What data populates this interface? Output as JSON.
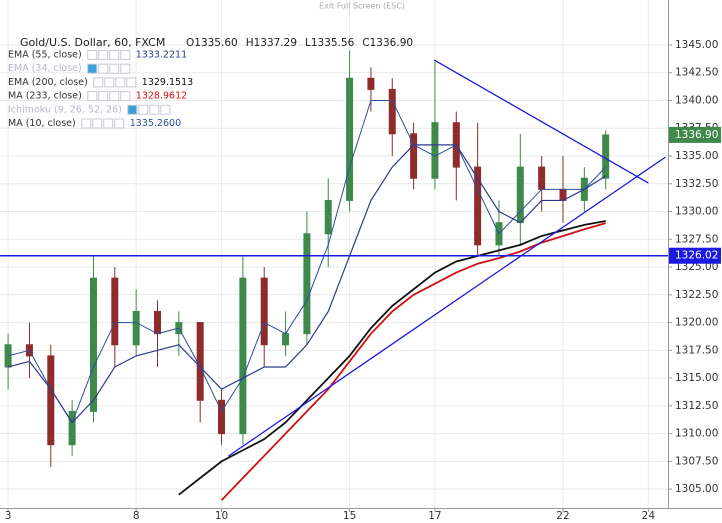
{
  "top_bar": "Exit Full Screen (ESC)",
  "chart_data": {
    "type": "candlestick",
    "title": "Gold/U.S. Dollar, 60, FXCM",
    "ohlc_labels": [
      "O1335.60",
      "H1337.29",
      "L1335.56",
      "C1336.90"
    ],
    "indicators": [
      {
        "name": "EMA (55, close)",
        "value_label": "1333.2211",
        "color": "#2b3a8f",
        "faded": false
      },
      {
        "name": "EMA (34, close)",
        "value_label": null,
        "color": "#9aa3c8",
        "faded": true
      },
      {
        "name": "EMA (200, close)",
        "value_label": "1329.1513",
        "color": "#111111",
        "faded": false
      },
      {
        "name": "MA (233, close)",
        "value_label": "1328.9612",
        "color": "#d01010",
        "faded": false
      },
      {
        "name": "Ichimoku (9, 26, 52, 26)",
        "value_label": null,
        "color": "#9aa3c8",
        "faded": true
      },
      {
        "name": "MA (10, close)",
        "value_label": "1335.2600",
        "color": "#2b4f9c",
        "faded": false
      }
    ],
    "x": [
      0,
      0.5,
      1,
      1.5,
      2,
      2.5,
      3,
      3.5,
      4,
      4.5,
      5,
      5.5,
      6,
      6.5,
      7,
      7.5,
      8,
      8.5,
      9,
      9.5,
      10,
      10.5,
      11,
      11.5,
      12,
      12.5,
      13,
      13.5,
      14
    ],
    "open": [
      1316,
      1318,
      1317,
      1309,
      1312,
      1324,
      1318,
      1321,
      1319,
      1320,
      1313,
      1310,
      1324,
      1318,
      1319,
      1328,
      1331,
      1342,
      1341,
      1337,
      1333,
      1338,
      1334,
      1327,
      1329,
      1334,
      1332,
      1331,
      1333
    ],
    "high": [
      1319,
      1320,
      1318,
      1313,
      1326,
      1325,
      1323,
      1322,
      1321,
      1320,
      1314,
      1326,
      1325,
      1321,
      1330,
      1333,
      1344.5,
      1343,
      1342,
      1338,
      1343.5,
      1339,
      1338,
      1331,
      1337,
      1335,
      1335,
      1334,
      1337.3
    ],
    "low": [
      1314,
      1315,
      1307,
      1308,
      1311,
      1316,
      1317,
      1316,
      1317,
      1311,
      1309,
      1309,
      1316,
      1317,
      1318,
      1325,
      1330,
      1339,
      1335,
      1332,
      1332,
      1331,
      1326,
      1326,
      1327,
      1330,
      1329,
      1330,
      1332
    ],
    "close": [
      1318,
      1317,
      1309,
      1312,
      1324,
      1318,
      1321,
      1319,
      1320,
      1313,
      1310,
      1324,
      1318,
      1319,
      1328,
      1331,
      1342,
      1341,
      1337,
      1333,
      1338,
      1334,
      1327,
      1329,
      1334,
      1332,
      1331,
      1333,
      1336.9
    ],
    "up_color": "#3f8a4a",
    "down_color": "#8e2c2c",
    "lines": [
      {
        "indicator": 5,
        "width": 1,
        "values": [
          1317,
          1317.5,
          1314,
          1311,
          1316,
          1320,
          1320,
          1319,
          1319.5,
          1316,
          1312,
          1315,
          1320,
          1319,
          1322,
          1327,
          1334,
          1340,
          1340,
          1336,
          1335,
          1336,
          1332,
          1328,
          1330,
          1332,
          1332,
          1332,
          1334
        ]
      },
      {
        "indicator": 0,
        "width": 1.2,
        "values": [
          1316,
          1316.5,
          1314,
          1311,
          1313,
          1316,
          1317,
          1317.5,
          1318,
          1316,
          1314,
          1315,
          1316,
          1316,
          1318,
          1321,
          1326,
          1331,
          1334,
          1336,
          1336,
          1336,
          1333,
          1330,
          1329,
          1331,
          1331,
          1332,
          1333.2
        ]
      },
      {
        "indicator": 2,
        "width": 1.8,
        "values": [
          null,
          null,
          null,
          null,
          null,
          null,
          null,
          null,
          1304.5,
          1306,
          1307.5,
          1308.5,
          1309.5,
          1311,
          1313,
          1315,
          1317,
          1319.5,
          1321.5,
          1323,
          1324.5,
          1325.5,
          1326,
          1326.5,
          1327,
          1327.8,
          1328.3,
          1328.8,
          1329.15
        ]
      },
      {
        "indicator": 3,
        "width": 1.8,
        "values": [
          null,
          null,
          null,
          null,
          null,
          null,
          null,
          null,
          null,
          null,
          1304,
          1306,
          1308,
          1310,
          1312,
          1314,
          1316.5,
          1319,
          1321,
          1322.5,
          1323.5,
          1324.5,
          1325.3,
          1325.8,
          1326.4,
          1327.2,
          1327.8,
          1328.4,
          1328.96
        ]
      }
    ],
    "trendlines": [
      {
        "x": [
          5.16,
          15.4
        ],
        "y": [
          1307.97,
          1334.9
        ],
        "color": "#1a1ae0"
      },
      {
        "x": [
          9.98,
          15.0
        ],
        "y": [
          1343.65,
          1332.57
        ],
        "color": "#1a1ae0"
      }
    ],
    "hline": {
      "value": 1326.02,
      "label": "1326.02",
      "color": "#1a1ae0"
    },
    "last_price": {
      "value": 1336.9,
      "label": "1336.90",
      "color": "#3f8a4a"
    },
    "xlim": [
      -0.19,
      15.46
    ],
    "xticks": [
      {
        "value": 0,
        "label": "3"
      },
      {
        "value": 3,
        "label": "8"
      },
      {
        "value": 5,
        "label": "10"
      },
      {
        "value": 8,
        "label": "15"
      },
      {
        "value": 10,
        "label": "17"
      },
      {
        "value": 13,
        "label": "22"
      },
      {
        "value": 15,
        "label": "24"
      }
    ],
    "ylim": [
      1303.3,
      1349.05
    ],
    "yticks": [
      {
        "value": 1305,
        "label": "1305.00"
      },
      {
        "value": 1307.5,
        "label": "1307.50"
      },
      {
        "value": 1310,
        "label": "1310.00"
      },
      {
        "value": 1312.5,
        "label": "1312.50"
      },
      {
        "value": 1315,
        "label": "1315.00"
      },
      {
        "value": 1317.5,
        "label": "1317.50"
      },
      {
        "value": 1320,
        "label": "1320.00"
      },
      {
        "value": 1322.5,
        "label": "1322.50"
      },
      {
        "value": 1325,
        "label": "1325.00"
      },
      {
        "value": 1327.5,
        "label": "1327.50"
      },
      {
        "value": 1330,
        "label": "1330.00"
      },
      {
        "value": 1332.5,
        "label": "1332.50"
      },
      {
        "value": 1335,
        "label": "1335.00"
      },
      {
        "value": 1337.5,
        "label": "1337.50"
      },
      {
        "value": 1340,
        "label": "1340.00"
      },
      {
        "value": 1342.5,
        "label": "1342.50"
      },
      {
        "value": 1345,
        "label": "1345.00"
      }
    ],
    "grid": true
  }
}
